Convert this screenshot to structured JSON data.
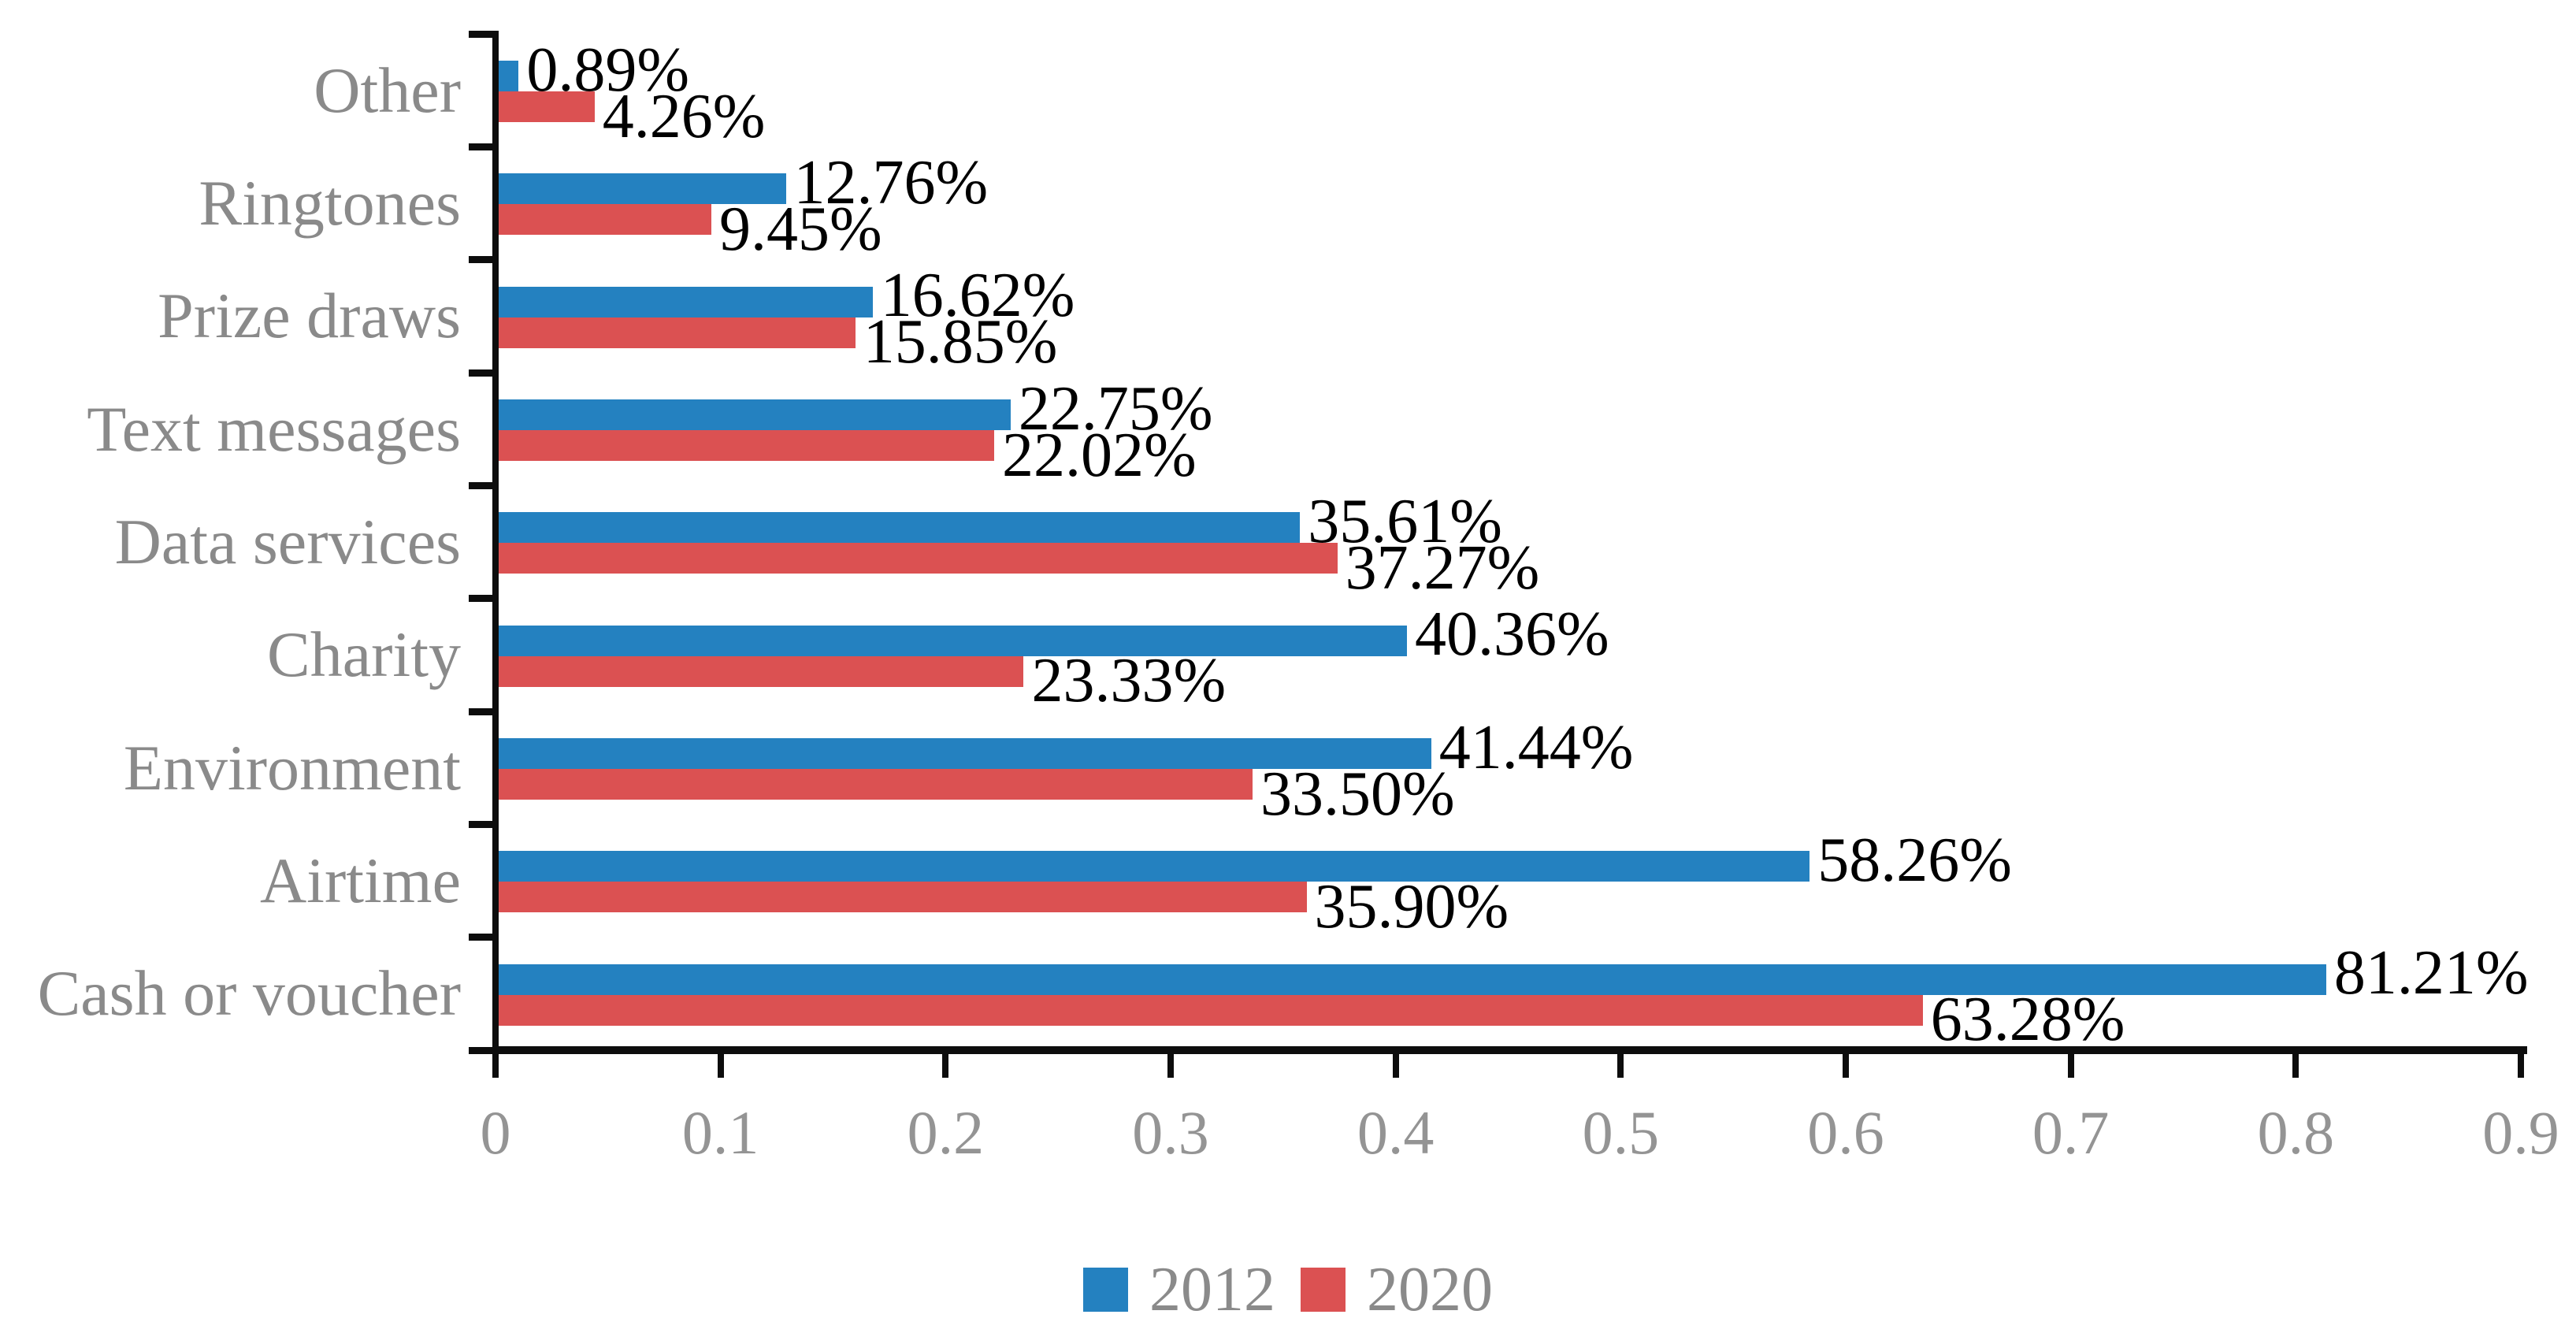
{
  "chart_data": {
    "type": "bar",
    "orientation": "horizontal",
    "title": "",
    "xlabel": "",
    "ylabel": "",
    "categories_top_to_bottom": [
      "Other",
      "Ringtones",
      "Prize draws",
      "Text messages",
      "Data services",
      "Charity",
      "Environment",
      "Airtime",
      "Cash or voucher"
    ],
    "series": [
      {
        "name": "2012",
        "color": "#2481C0",
        "values": [
          0.0089,
          0.1276,
          0.1662,
          0.2275,
          0.3561,
          0.4036,
          0.4144,
          0.5826,
          0.8121
        ],
        "labels": [
          "0.89%",
          "12.76%",
          "16.62%",
          "22.75%",
          "35.61%",
          "40.36%",
          "41.44%",
          "58.26%",
          "81.21%"
        ]
      },
      {
        "name": "2020",
        "color": "#DB5152",
        "values": [
          0.0426,
          0.0945,
          0.1585,
          0.2202,
          0.3727,
          0.2333,
          0.335,
          0.359,
          0.6328
        ],
        "labels": [
          "4.26%",
          "9.45%",
          "15.85%",
          "22.02%",
          "37.27%",
          "23.33%",
          "33.50%",
          "35.90%",
          "63.28%"
        ]
      }
    ],
    "xlim": [
      0,
      0.9
    ],
    "x_ticks": [
      "0",
      "0.1",
      "0.2",
      "0.3",
      "0.4",
      "0.5",
      "0.6",
      "0.7",
      "0.8",
      "0.9"
    ],
    "grid": false,
    "legend_position": "bottom-center",
    "colors": {
      "axis": "#0d0d0d",
      "category_label": "#8A8A8A",
      "tick_label": "#949494",
      "legend_label": "#8A8A8A",
      "data_label": "#000000",
      "background": "#FFFFFF"
    }
  }
}
